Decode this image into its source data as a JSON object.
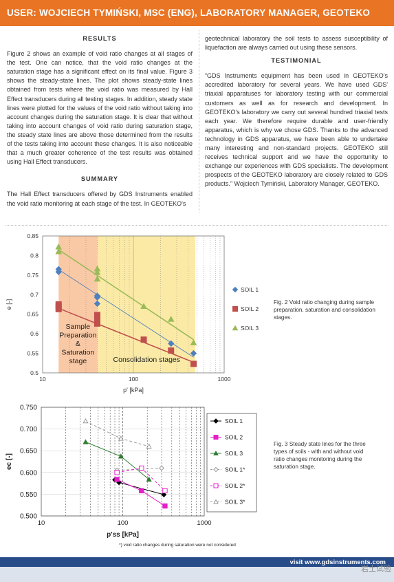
{
  "header": {
    "title": "USER: WOJCIECH TYMIŃSKI, MSC (ENG), LABORATORY MANAGER, GEOTEKO"
  },
  "left_column": {
    "results_heading": "RESULTS",
    "results_text": "Figure 2 shows an example of void ratio changes at all stages of the test. One can notice, that the void ratio changes at the saturation stage has a significant effect on its final value. Figure 3 shows the steady-state lines. The plot shows steady-state lines obtained from tests where the void ratio was measured by Hall Effect transducers during all testing stages. In addition, steady state lines were plotted for the values of the void ratio without taking into account changes during the saturation stage. It is clear that without taking into account changes of void ratio during saturation stage, the steady state lines are above those determined from the results of the tests taking into account these changes. It is also noticeable that a much greater coherence of the test results was obtained using Hall Effect transducers.",
    "summary_heading": "SUMMARY",
    "summary_text": "The Hall Effect transducers offered by GDS Instruments enabled the void ratio monitoring at each stage of the test. In GEOTEKO's"
  },
  "right_column": {
    "intro_text": "geotechnical laboratory the soil tests to assess susceptibility of liquefaction are always carried out using these sensors.",
    "testimonial_heading": "TESTIMONIAL",
    "testimonial_text": "“GDS Instruments equipment has been used in GEOTEKO's accredited laboratory for several years. We have used GDS' triaxial apparatuses for laboratory testing with our commercial customers as well as for research and development. In GEOTEKO's laboratory we carry out several hundred triaxial tests each year. We therefore require durable and user-friendly apparatus, which is why we chose GDS. Thanks to the advanced technology in GDS apparatus, we have been able to undertake many interesting and non-standard projects. GEOTEKO still receives technical support and we have the opportunity to exchange our experiences with GDS specialists. The development prospects of the GEOTEKO laboratory are closely related to GDS products.” Wojciech Tymiński, Laboratory Manager, GEOTEKO."
  },
  "captions": {
    "fig2": "Fig. 2 Void ratio changing during sample preparation, saturation and consolidation stages.",
    "fig3": "Fig. 3 Steady state lines for the three types of soils - with and without void ratio changes monitoring during the saturation stage."
  },
  "footer": {
    "visit": "visit www.gdsinstruments.com",
    "watermark": "岩土试验"
  },
  "colors": {
    "banner": "#e87424",
    "footer_bar": "#274c89",
    "soil1": "#4f81bd",
    "soil2": "#c0504d",
    "soil3": "#9bbb59"
  },
  "chart_data": [
    {
      "type": "scatter",
      "title": "",
      "xlabel": "p' [kPa]",
      "ylabel": "e [-]",
      "xscale": "log",
      "xlim": [
        10,
        1000
      ],
      "ylim": [
        0.5,
        0.85
      ],
      "xticks": [
        "10",
        "100",
        "1000"
      ],
      "yticks": [
        "0.5",
        "0.55",
        "0.6",
        "0.65",
        "0.7",
        "0.75",
        "0.8",
        "0.85"
      ],
      "grid": "vertical dotted",
      "legend": "right",
      "regions": [
        {
          "label": "Sample Preparation & Saturation stage",
          "x": [
            15,
            40
          ],
          "color": "#f9c9a6"
        },
        {
          "label": "Consolidation stages",
          "x": [
            40,
            480
          ],
          "color": "#fbeaa6"
        }
      ],
      "series": [
        {
          "name": "SOIL 1",
          "marker": "diamond",
          "color": "#4f81bd",
          "points": [
            [
              15,
              0.765
            ],
            [
              15,
              0.758
            ],
            [
              40,
              0.697
            ],
            [
              40,
              0.693
            ],
            [
              40,
              0.677
            ],
            [
              260,
              0.575
            ],
            [
              460,
              0.55
            ]
          ],
          "trend": [
            [
              15,
              0.764
            ],
            [
              460,
              0.54
            ]
          ]
        },
        {
          "name": "SOIL 2",
          "marker": "square",
          "color": "#c0504d",
          "points": [
            [
              15,
              0.675
            ],
            [
              15,
              0.669
            ],
            [
              15,
              0.663
            ],
            [
              40,
              0.648
            ],
            [
              40,
              0.636
            ],
            [
              40,
              0.626
            ],
            [
              130,
              0.585
            ],
            [
              260,
              0.557
            ],
            [
              460,
              0.523
            ]
          ],
          "trend": [
            [
              15,
              0.665
            ],
            [
              460,
              0.527
            ]
          ]
        },
        {
          "name": "SOIL 3",
          "marker": "triangle",
          "color": "#9bbb59",
          "points": [
            [
              15,
              0.822
            ],
            [
              15,
              0.81
            ],
            [
              40,
              0.766
            ],
            [
              40,
              0.757
            ],
            [
              40,
              0.74
            ],
            [
              130,
              0.67
            ],
            [
              260,
              0.637
            ],
            [
              460,
              0.577
            ]
          ],
          "trend": [
            [
              15,
              0.815
            ],
            [
              460,
              0.585
            ]
          ]
        }
      ]
    },
    {
      "type": "scatter",
      "title": "",
      "xlabel": "p'ss [kPa]",
      "ylabel": "ec [-]",
      "xscale": "log",
      "xlim": [
        10,
        1000
      ],
      "ylim": [
        0.5,
        0.75
      ],
      "xticks": [
        "10",
        "100",
        "1000"
      ],
      "yticks": [
        "0.500",
        "0.550",
        "0.600",
        "0.650",
        "0.700",
        "0.750"
      ],
      "grid": "both dotted",
      "legend": "right",
      "footnote": "*) void ratio changes during saturation were not considered",
      "series": [
        {
          "name": "SOIL 1",
          "marker": "diamond",
          "color": "#000000",
          "filled": true,
          "line": "solid",
          "points": [
            [
              80,
              0.583
            ],
            [
              90,
              0.577
            ],
            [
              320,
              0.549
            ]
          ]
        },
        {
          "name": "SOIL 2",
          "marker": "square",
          "color": "#e520c8",
          "filled": true,
          "line": "solid",
          "points": [
            [
              85,
              0.584
            ],
            [
              170,
              0.558
            ],
            [
              330,
              0.523
            ]
          ]
        },
        {
          "name": "SOIL 3",
          "marker": "triangle",
          "color": "#2e7d32",
          "filled": true,
          "line": "solid",
          "points": [
            [
              35,
              0.67
            ],
            [
              95,
              0.637
            ],
            [
              210,
              0.584
            ]
          ]
        },
        {
          "name": "SOIL 1*",
          "marker": "diamond",
          "color": "#999999",
          "filled": false,
          "line": "dashed",
          "points": [
            [
              85,
              0.605
            ],
            [
              300,
              0.61
            ]
          ]
        },
        {
          "name": "SOIL 2*",
          "marker": "square",
          "color": "#e520c8",
          "filled": false,
          "line": "dashed",
          "points": [
            [
              85,
              0.6
            ],
            [
              170,
              0.61
            ],
            [
              330,
              0.558
            ]
          ]
        },
        {
          "name": "SOIL 3*",
          "marker": "triangle",
          "color": "#999999",
          "filled": false,
          "line": "dashed",
          "points": [
            [
              35,
              0.718
            ],
            [
              95,
              0.678
            ],
            [
              210,
              0.66
            ]
          ]
        }
      ]
    }
  ]
}
